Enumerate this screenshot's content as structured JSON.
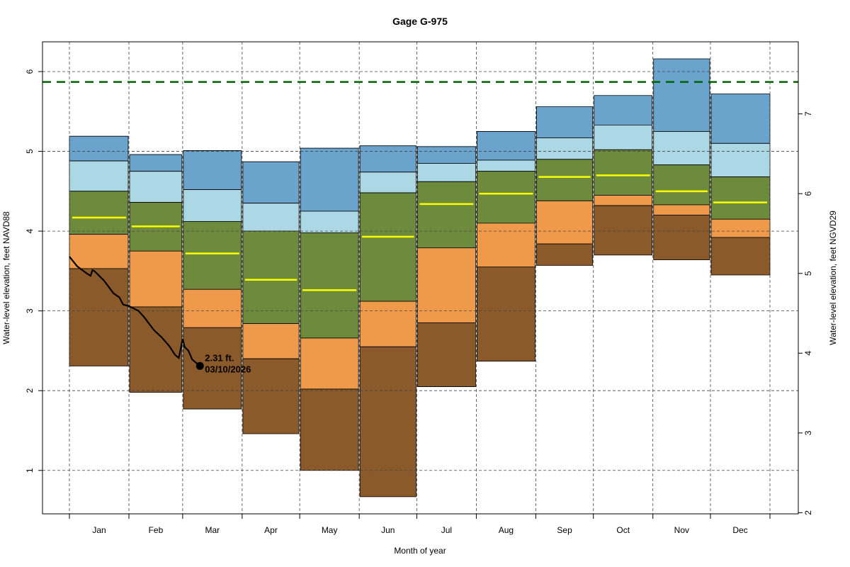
{
  "chart_data": {
    "type": "area",
    "title": "Gage G-975",
    "xlabel": "Month of year",
    "ylabel": "Water-level elevation, feet NAVD88",
    "ylabel_right": "Water-level elevation, feet NGVD29",
    "ylim": [
      0.45,
      6.35
    ],
    "yticks": [
      1,
      2,
      3,
      4,
      5,
      6
    ],
    "yticks_right": [
      2,
      3,
      4,
      5,
      6,
      7
    ],
    "datum_offset_ngvd29_minus_navd88": 1.53,
    "grid": true,
    "categories": [
      "Jan",
      "Feb",
      "Mar",
      "Apr",
      "May",
      "Jun",
      "Jul",
      "Aug",
      "Sep",
      "Oct",
      "Nov",
      "Dec"
    ],
    "month_start_day": [
      1,
      32,
      60,
      91,
      121,
      152,
      182,
      213,
      244,
      274,
      305,
      335,
      366
    ],
    "band_colors": {
      "max": "#6aa3cb",
      "upper": "#acd8e6",
      "middle": "#6e8b3d",
      "lower": "#ee9a4a",
      "min": "#8b5a2b",
      "median": "#ffff00"
    },
    "series": [
      {
        "name": "band_top",
        "values": [
          5.19,
          4.96,
          5.01,
          4.87,
          5.04,
          5.07,
          5.06,
          5.25,
          5.56,
          5.7,
          6.16,
          5.72
        ]
      },
      {
        "name": "upper_quartile_top",
        "values": [
          4.88,
          4.75,
          4.52,
          4.35,
          4.25,
          4.74,
          4.85,
          4.89,
          5.17,
          5.33,
          5.25,
          5.1
        ]
      },
      {
        "name": "middle_top",
        "values": [
          4.5,
          4.36,
          4.12,
          4.0,
          3.98,
          4.48,
          4.62,
          4.75,
          4.9,
          5.02,
          4.83,
          4.68
        ]
      },
      {
        "name": "lower_top",
        "values": [
          3.96,
          3.75,
          3.27,
          2.84,
          2.66,
          3.12,
          3.79,
          4.1,
          4.38,
          4.45,
          4.33,
          4.15
        ]
      },
      {
        "name": "min_top",
        "values": [
          3.53,
          3.05,
          2.79,
          2.4,
          2.02,
          2.55,
          2.85,
          3.55,
          3.84,
          4.32,
          4.2,
          3.92
        ]
      },
      {
        "name": "band_bottom",
        "values": [
          2.31,
          1.98,
          1.77,
          1.46,
          1.0,
          0.67,
          2.05,
          2.37,
          3.57,
          3.7,
          3.64,
          3.45
        ]
      },
      {
        "name": "median",
        "values": [
          4.17,
          4.06,
          3.72,
          3.39,
          3.26,
          3.93,
          4.34,
          4.47,
          4.68,
          4.7,
          4.5,
          4.36
        ]
      }
    ],
    "reference_line": {
      "value": 5.87,
      "color": "#006400",
      "style": "dashed"
    },
    "observed": {
      "color": "#000000",
      "points": [
        [
          1,
          3.68
        ],
        [
          5,
          3.56
        ],
        [
          10,
          3.47
        ],
        [
          12,
          3.44
        ],
        [
          13,
          3.51
        ],
        [
          14,
          3.5
        ],
        [
          19,
          3.38
        ],
        [
          24,
          3.22
        ],
        [
          27,
          3.17
        ],
        [
          29,
          3.08
        ],
        [
          32,
          3.06
        ],
        [
          37,
          3.0
        ],
        [
          40,
          2.92
        ],
        [
          45,
          2.76
        ],
        [
          49,
          2.67
        ],
        [
          53,
          2.56
        ],
        [
          56,
          2.45
        ],
        [
          58,
          2.41
        ],
        [
          60,
          2.65
        ],
        [
          61,
          2.55
        ],
        [
          63,
          2.5
        ],
        [
          65,
          2.39
        ],
        [
          69,
          2.31
        ]
      ],
      "last_value_label": "2.31 ft.",
      "last_date_label": "03/10/2026"
    }
  }
}
